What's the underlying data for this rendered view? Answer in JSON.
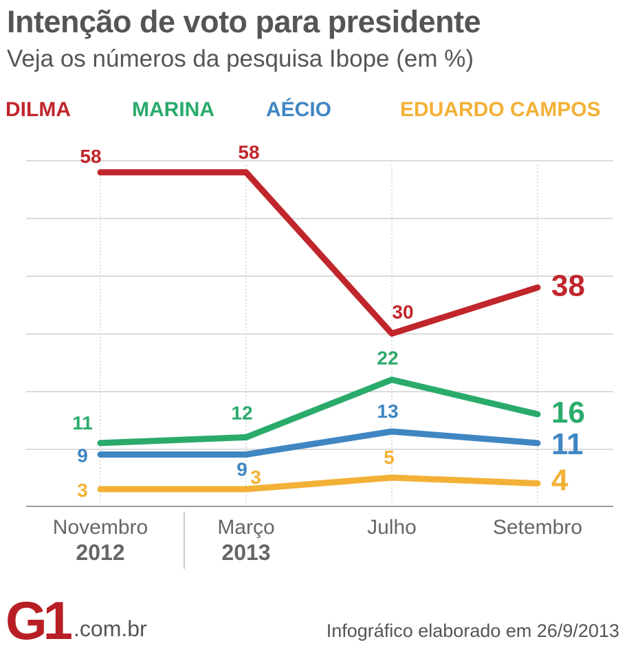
{
  "header": {
    "title": "Intenção de voto para presidente",
    "subtitle": "Veja os números da pesquisa Ibope (em %)"
  },
  "chart_data": {
    "type": "line",
    "title": "Intenção de voto para presidente",
    "subtitle": "Veja os números da pesquisa Ibope (em %)",
    "categories": [
      "Novembro",
      "Março",
      "Julho",
      "Setembro"
    ],
    "years": [
      "2012",
      "2013"
    ],
    "ylim": [
      0,
      60
    ],
    "grid": true,
    "legend_position": "top",
    "series": [
      {
        "name": "DILMA",
        "color": "#c0262c",
        "values": [
          58,
          58,
          30,
          38
        ]
      },
      {
        "name": "MARINA",
        "color": "#2aab6b",
        "values": [
          11,
          12,
          22,
          16
        ]
      },
      {
        "name": "AÉCIO",
        "color": "#3f86c2",
        "values": [
          9,
          9,
          13,
          11
        ]
      },
      {
        "name": "EDUARDO CAMPOS",
        "color": "#f2b136",
        "values": [
          3,
          3,
          5,
          4
        ]
      }
    ]
  },
  "footer": {
    "logo_text": "G1",
    "logo_suffix": ".com.br",
    "credit": "Infográfico elaborado em 26/9/2013"
  }
}
